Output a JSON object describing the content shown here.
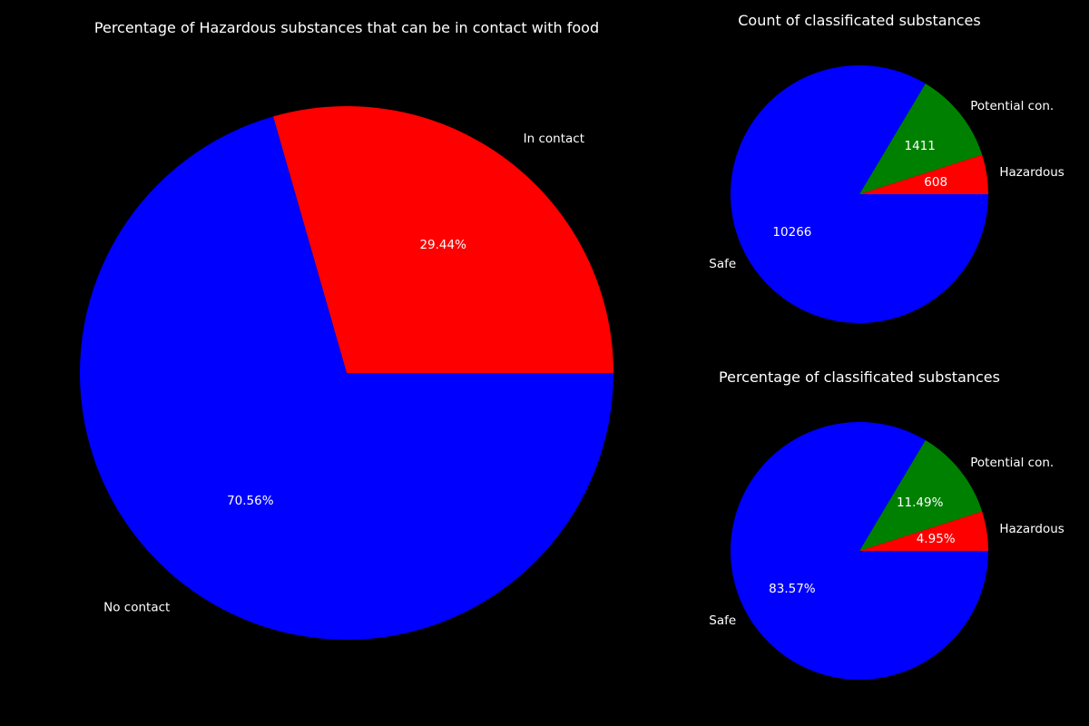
{
  "page": {
    "background": "#000000"
  },
  "chart_data": [
    {
      "type": "pie",
      "title": "Percentage of Hazardous substances that can be in contact with food",
      "labels": [
        "In contact",
        "No contact"
      ],
      "values": [
        29.44,
        70.56
      ],
      "value_labels": [
        "29.44%",
        "70.56%"
      ],
      "colors": [
        "#ff0000",
        "#0000ff"
      ],
      "start_angle": 0,
      "direction": "counterclockwise",
      "legend": "none"
    },
    {
      "type": "pie",
      "title": "Count of classificated substances",
      "labels": [
        "Hazardous",
        "Potential con.",
        "Safe"
      ],
      "values": [
        608,
        1411,
        10266
      ],
      "value_labels": [
        "608",
        "1411",
        "10266"
      ],
      "colors": [
        "#ff0000",
        "#008000",
        "#0000ff"
      ],
      "start_angle": 0,
      "direction": "counterclockwise",
      "legend": "none"
    },
    {
      "type": "pie",
      "title": "Percentage of classificated substances",
      "labels": [
        "Hazardous",
        "Potential con.",
        "Safe"
      ],
      "values": [
        4.95,
        11.49,
        83.57
      ],
      "value_labels": [
        "4.95%",
        "11.49%",
        "83.57%"
      ],
      "colors": [
        "#ff0000",
        "#008000",
        "#0000ff"
      ],
      "start_angle": 0,
      "direction": "counterclockwise",
      "legend": "none"
    }
  ]
}
